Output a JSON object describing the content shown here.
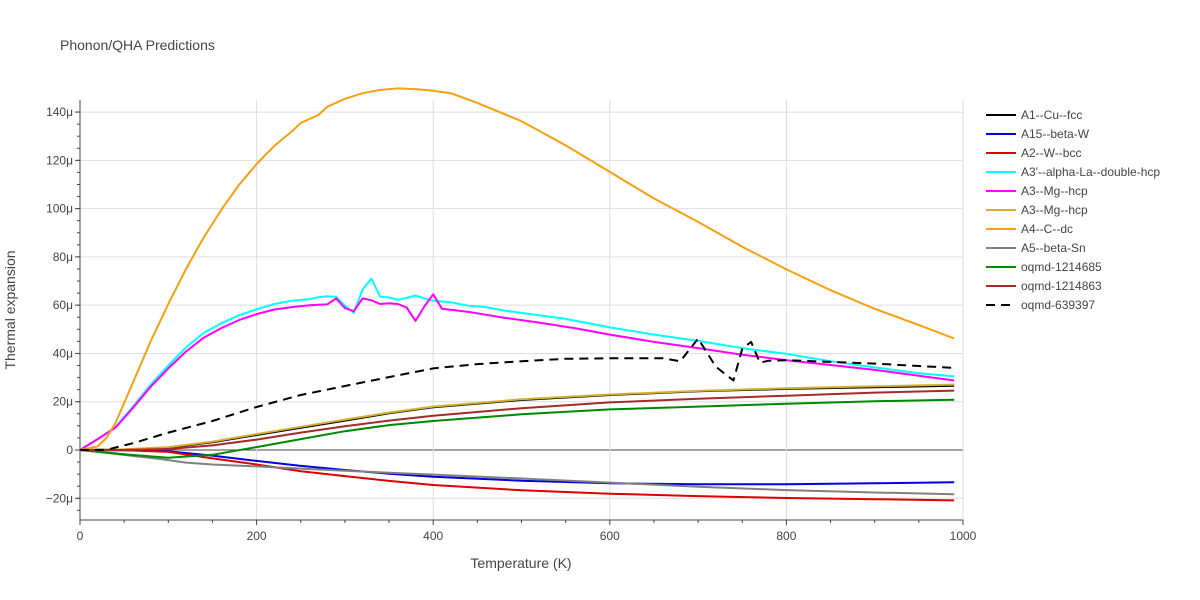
{
  "chart_data": {
    "type": "line",
    "title": "Phonon/QHA Predictions",
    "xlabel": "Temperature (K)",
    "ylabel": "Thermal expansion",
    "xlim": [
      0,
      1000
    ],
    "ylim": [
      -2.9e-05,
      0.000145
    ],
    "x_ticks": [
      0,
      200,
      400,
      600,
      800,
      1000
    ],
    "x_tick_labels": [
      "0",
      "200",
      "400",
      "600",
      "800",
      "1000"
    ],
    "y_ticks": [
      -2e-05,
      0,
      2e-05,
      4e-05,
      6e-05,
      8e-05,
      0.0001,
      0.00012,
      0.00014
    ],
    "y_tick_labels": [
      "−20μ",
      "0",
      "20μ",
      "40μ",
      "60μ",
      "80μ",
      "100μ",
      "120μ",
      "140μ"
    ],
    "grid": true,
    "legend_position": "right",
    "series": [
      {
        "name": "A1--Cu--fcc",
        "color": "#000000",
        "dash": "solid",
        "x": [
          0,
          20,
          50,
          100,
          150,
          200,
          250,
          300,
          350,
          400,
          500,
          600,
          700,
          800,
          900,
          990
        ],
        "y": [
          0,
          1e-07,
          2e-07,
          1e-06,
          3.2e-06,
          6.2e-06,
          9.2e-06,
          1.22e-05,
          1.52e-05,
          1.77e-05,
          2.07e-05,
          2.28e-05,
          2.43e-05,
          2.53e-05,
          2.6e-05,
          2.66e-05
        ]
      },
      {
        "name": "A15--beta-W",
        "color": "#0000dd",
        "dash": "solid",
        "x": [
          0,
          50,
          100,
          150,
          200,
          250,
          300,
          350,
          400,
          500,
          600,
          700,
          800,
          900,
          990
        ],
        "y": [
          0,
          -1e-07,
          -6e-07,
          -2.3e-06,
          -4.5e-06,
          -6.6e-06,
          -8.3e-06,
          -9.8e-06,
          -1.11e-05,
          -1.27e-05,
          -1.38e-05,
          -1.42e-05,
          -1.42e-05,
          -1.38e-05,
          -1.34e-05
        ]
      },
      {
        "name": "A2--W--bcc",
        "color": "#dd0000",
        "dash": "solid",
        "x": [
          0,
          50,
          100,
          150,
          200,
          250,
          300,
          350,
          400,
          500,
          600,
          700,
          800,
          900,
          990
        ],
        "y": [
          0,
          -1e-07,
          -8e-07,
          -3.5e-06,
          -6e-06,
          -8.8e-06,
          -1.08e-05,
          -1.28e-05,
          -1.45e-05,
          -1.67e-05,
          -1.81e-05,
          -1.91e-05,
          -1.99e-05,
          -2.04e-05,
          -2.09e-05
        ]
      },
      {
        "name": "A3'--alpha-La--double-hcp",
        "color": "#00ffff",
        "dash": "solid",
        "x": [
          0,
          20,
          40,
          60,
          80,
          100,
          120,
          140,
          160,
          180,
          200,
          220,
          240,
          260,
          270,
          280,
          290,
          300,
          310,
          320,
          330,
          340,
          350,
          360,
          370,
          380,
          390,
          400,
          420,
          440,
          460,
          480,
          500,
          550,
          600,
          650,
          700,
          750,
          800,
          850,
          900,
          950,
          990
        ],
        "y": [
          0,
          4.5e-06,
          9.5e-06,
          1.8e-05,
          2.7e-05,
          3.5e-05,
          4.25e-05,
          4.85e-05,
          5.25e-05,
          5.58e-05,
          5.83e-05,
          6.05e-05,
          6.18e-05,
          6.25e-05,
          6.33e-05,
          6.37e-05,
          6.35e-05,
          5.98e-05,
          5.68e-05,
          6.65e-05,
          7.1e-05,
          6.35e-05,
          6.32e-05,
          6.22e-05,
          6.3e-05,
          6.4e-05,
          6.28e-05,
          6.18e-05,
          6.12e-05,
          5.98e-05,
          5.92e-05,
          5.78e-05,
          5.68e-05,
          5.43e-05,
          5.08e-05,
          4.78e-05,
          4.52e-05,
          4.22e-05,
          3.98e-05,
          3.68e-05,
          3.42e-05,
          3.18e-05,
          3.05e-05
        ]
      },
      {
        "name": "A3--Mg--hcp",
        "color": "#ff00ff",
        "dash": "solid",
        "x": [
          0,
          20,
          40,
          60,
          80,
          100,
          120,
          140,
          160,
          180,
          200,
          220,
          240,
          260,
          270,
          280,
          290,
          300,
          310,
          320,
          330,
          340,
          350,
          360,
          370,
          380,
          390,
          400,
          410,
          440,
          480,
          520,
          560,
          600,
          650,
          700,
          750,
          800,
          850,
          900,
          950,
          990
        ],
        "y": [
          0,
          4.5e-06,
          9.2e-06,
          1.75e-05,
          2.62e-05,
          3.38e-05,
          4.08e-05,
          4.65e-05,
          5.05e-05,
          5.38e-05,
          5.63e-05,
          5.82e-05,
          5.92e-05,
          6e-05,
          6.02e-05,
          6.03e-05,
          6.28e-05,
          5.88e-05,
          5.75e-05,
          6.28e-05,
          6.2e-05,
          6.05e-05,
          6.08e-05,
          6.05e-05,
          5.9e-05,
          5.35e-05,
          5.95e-05,
          6.45e-05,
          5.85e-05,
          5.72e-05,
          5.48e-05,
          5.28e-05,
          5.05e-05,
          4.78e-05,
          4.48e-05,
          4.22e-05,
          3.95e-05,
          3.72e-05,
          3.52e-05,
          3.32e-05,
          3.08e-05,
          2.88e-05
        ]
      },
      {
        "name": "A3--Mg--hcp",
        "color": "#d4b030",
        "dash": "solid",
        "x": [
          0,
          20,
          50,
          100,
          150,
          200,
          250,
          300,
          350,
          400,
          500,
          600,
          700,
          800,
          900,
          990
        ],
        "y": [
          0,
          1e-07,
          3e-07,
          1.2e-06,
          3.5e-06,
          6.6e-06,
          9.6e-06,
          1.26e-05,
          1.55e-05,
          1.8e-05,
          2.1e-05,
          2.3e-05,
          2.45e-05,
          2.56e-05,
          2.64e-05,
          2.71e-05
        ]
      },
      {
        "name": "A4--C--dc",
        "color": "#f5a00f",
        "dash": "solid",
        "x": [
          0,
          20,
          30,
          40,
          60,
          80,
          100,
          120,
          140,
          160,
          180,
          200,
          220,
          240,
          250,
          270,
          280,
          300,
          320,
          340,
          360,
          380,
          400,
          420,
          450,
          500,
          550,
          600,
          650,
          700,
          750,
          800,
          850,
          900,
          950,
          990
        ],
        "y": [
          0,
          1.5e-06,
          5e-06,
          1.1e-05,
          2.8e-05,
          4.5e-05,
          6.05e-05,
          7.5e-05,
          8.8e-05,
          9.95e-05,
          0.0001098,
          0.0001185,
          0.000126,
          0.000132,
          0.0001355,
          0.0001388,
          0.0001422,
          0.0001455,
          0.0001478,
          0.0001492,
          0.0001498,
          0.0001495,
          0.0001488,
          0.0001478,
          0.0001438,
          0.0001362,
          0.0001262,
          0.0001152,
          0.0001042,
          9.45e-05,
          8.42e-05,
          7.48e-05,
          6.62e-05,
          5.85e-05,
          5.18e-05,
          4.62e-05
        ]
      },
      {
        "name": "A5--beta-Sn",
        "color": "#808080",
        "dash": "solid",
        "x": [
          0,
          30,
          60,
          90,
          120,
          150,
          200,
          250,
          300,
          400,
          500,
          600,
          700,
          800,
          900,
          990
        ],
        "y": [
          0,
          -1.2e-06,
          -2.5e-06,
          -3.7e-06,
          -5.2e-06,
          -6e-06,
          -6.8e-06,
          -7.7e-06,
          -8.6e-06,
          -1.02e-05,
          -1.18e-05,
          -1.35e-05,
          -1.52e-05,
          -1.66e-05,
          -1.76e-05,
          -1.83e-05
        ]
      },
      {
        "name": "oqmd-1214685",
        "color": "#008800",
        "dash": "solid",
        "x": [
          0,
          50,
          100,
          150,
          200,
          250,
          300,
          350,
          400,
          500,
          600,
          700,
          800,
          900,
          990
        ],
        "y": [
          0,
          -1.8e-06,
          -3.2e-06,
          -2e-06,
          1.2e-06,
          4.5e-06,
          7.8e-06,
          1.03e-05,
          1.2e-05,
          1.48e-05,
          1.68e-05,
          1.8e-05,
          1.92e-05,
          2.02e-05,
          2.08e-05
        ]
      },
      {
        "name": "oqmd-1214863",
        "color": "#a52a2a",
        "dash": "solid",
        "x": [
          0,
          50,
          100,
          150,
          200,
          250,
          300,
          350,
          400,
          500,
          600,
          700,
          800,
          900,
          990
        ],
        "y": [
          0,
          0,
          4e-07,
          1.9e-06,
          4.3e-06,
          7.2e-06,
          9.8e-06,
          1.22e-05,
          1.42e-05,
          1.73e-05,
          1.97e-05,
          2.12e-05,
          2.25e-05,
          2.38e-05,
          2.46e-05
        ]
      },
      {
        "name": "oqmd-639397",
        "color": "#000000",
        "dash": "dash",
        "x": [
          0,
          30,
          60,
          100,
          150,
          200,
          250,
          300,
          350,
          400,
          450,
          500,
          550,
          600,
          660,
          680,
          700,
          720,
          740,
          750,
          760,
          770,
          780,
          800,
          850,
          900,
          950,
          990
        ],
        "y": [
          0,
          1e-07,
          2.8e-06,
          7.2e-06,
          1.2e-05,
          1.78e-05,
          2.28e-05,
          2.65e-05,
          3.02e-05,
          3.38e-05,
          3.56e-05,
          3.68e-05,
          3.78e-05,
          3.8e-05,
          3.8e-05,
          3.68e-05,
          4.62e-05,
          3.45e-05,
          2.88e-05,
          4.2e-05,
          4.48e-05,
          3.62e-05,
          3.7e-05,
          3.72e-05,
          3.65e-05,
          3.58e-05,
          3.48e-05,
          3.4e-05
        ]
      }
    ]
  }
}
